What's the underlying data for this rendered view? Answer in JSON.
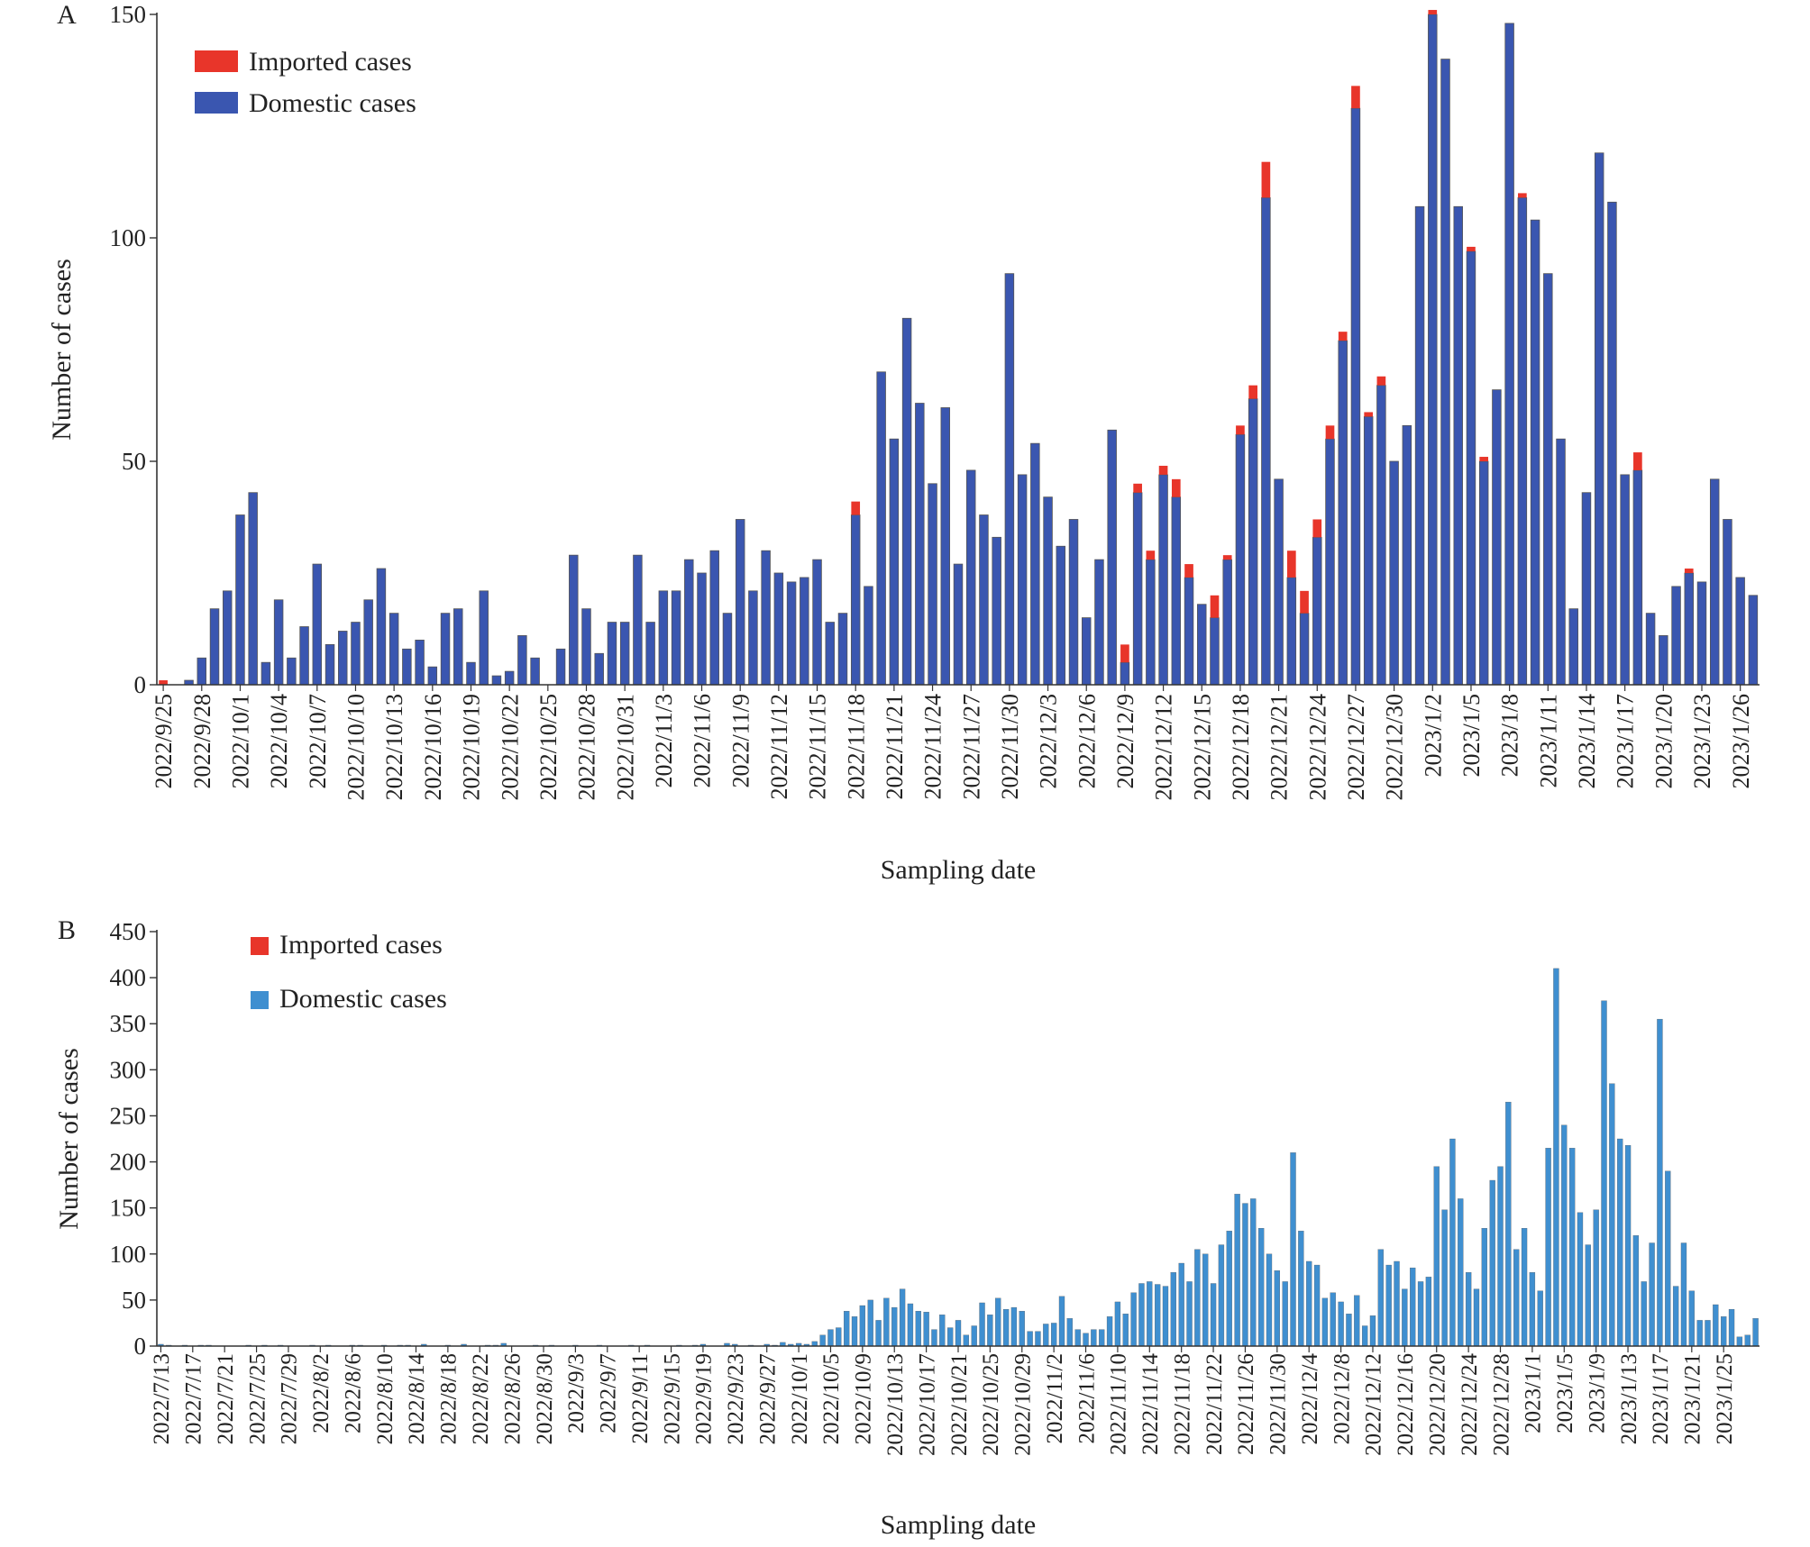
{
  "colors": {
    "imported": "#e8352a",
    "domestic": "#3a56b0",
    "domestic_b": "#3f8fd0",
    "axis": "#333333",
    "bar_outline": "#555555"
  },
  "chart_data": [
    {
      "panel_label": "A",
      "type": "bar",
      "stacked": true,
      "xlabel": "Sampling date",
      "ylabel": "Number of cases",
      "ylim": [
        0,
        150
      ],
      "yticks": [
        0,
        50,
        100,
        150
      ],
      "legend": {
        "position": "top-left",
        "entries": [
          "Imported cases",
          "Domestic cases"
        ]
      },
      "tick_labels": [
        "2022/9/25",
        "2022/9/28",
        "2022/10/1",
        "2022/10/4",
        "2022/10/7",
        "2022/10/10",
        "2022/10/13",
        "2022/10/16",
        "2022/10/19",
        "2022/10/22",
        "2022/10/25",
        "2022/10/28",
        "2022/10/31",
        "2022/11/3",
        "2022/11/6",
        "2022/11/9",
        "2022/11/12",
        "2022/11/15",
        "2022/11/18",
        "2022/11/21",
        "2022/11/24",
        "2022/11/27",
        "2022/11/30",
        "2022/12/3",
        "2022/12/6",
        "2022/12/9",
        "2022/12/12",
        "2022/12/15",
        "2022/12/18",
        "2022/12/21",
        "2022/12/24",
        "2022/12/27",
        "2022/12/30",
        "2023/1/2",
        "2023/1/5",
        "2023/1/8",
        "2023/1/11",
        "2023/1/14",
        "2023/1/17",
        "2023/1/20",
        "2023/1/23",
        "2023/1/26"
      ],
      "series": [
        {
          "name": "Domestic cases",
          "values": [
            0,
            0,
            1,
            6,
            17,
            21,
            38,
            43,
            5,
            19,
            6,
            13,
            27,
            9,
            12,
            14,
            19,
            26,
            16,
            8,
            10,
            4,
            16,
            17,
            5,
            21,
            2,
            3,
            11,
            6,
            0,
            8,
            29,
            17,
            7,
            14,
            14,
            29,
            14,
            21,
            21,
            28,
            25,
            30,
            16,
            37,
            21,
            30,
            25,
            23,
            24,
            28,
            14,
            16,
            38,
            22,
            70,
            55,
            82,
            63,
            45,
            62,
            27,
            48,
            38,
            33,
            92,
            47,
            54,
            42,
            31,
            37,
            15,
            28,
            57,
            5,
            43,
            28,
            47,
            42,
            24,
            18,
            15,
            28,
            56,
            64,
            109,
            46,
            24,
            16,
            33,
            55,
            77,
            129,
            60,
            67,
            50,
            58,
            107,
            150,
            140,
            107,
            97,
            50,
            66,
            148,
            109,
            104,
            92,
            55,
            17,
            43,
            119,
            108,
            47,
            48,
            16,
            11,
            22,
            25,
            23,
            46,
            37,
            24,
            20
          ]
        },
        {
          "name": "Imported cases",
          "values": [
            1,
            0,
            0,
            0,
            0,
            0,
            0,
            0,
            0,
            0,
            0,
            0,
            0,
            0,
            0,
            0,
            0,
            0,
            0,
            0,
            0,
            0,
            0,
            0,
            0,
            0,
            0,
            0,
            0,
            0,
            0,
            0,
            0,
            0,
            0,
            0,
            0,
            0,
            0,
            0,
            0,
            0,
            0,
            0,
            0,
            0,
            0,
            0,
            0,
            0,
            0,
            0,
            0,
            0,
            3,
            0,
            0,
            0,
            0,
            0,
            0,
            0,
            0,
            0,
            0,
            0,
            0,
            0,
            0,
            0,
            0,
            0,
            0,
            0,
            0,
            4,
            2,
            2,
            2,
            4,
            3,
            0,
            5,
            1,
            2,
            3,
            8,
            0,
            6,
            5,
            4,
            3,
            2,
            5,
            1,
            2,
            0,
            0,
            0,
            1,
            0,
            0,
            1,
            1,
            0,
            0,
            1,
            0,
            0,
            0,
            0,
            0,
            0,
            0,
            0,
            4,
            0,
            0,
            0,
            1,
            0,
            0,
            0,
            0,
            0
          ]
        }
      ]
    },
    {
      "panel_label": "B",
      "type": "bar",
      "stacked": true,
      "xlabel": "Sampling date",
      "ylabel": "Number of cases",
      "ylim": [
        0,
        450
      ],
      "yticks": [
        0,
        50,
        100,
        150,
        200,
        250,
        300,
        350,
        400,
        450
      ],
      "legend": {
        "position": "top-left",
        "entries": [
          "Imported cases",
          "Domestic cases"
        ]
      },
      "tick_labels": [
        "2022/7/13",
        "2022/7/17",
        "2022/7/21",
        "2022/7/25",
        "2022/7/29",
        "2022/8/2",
        "2022/8/6",
        "2022/8/10",
        "2022/8/14",
        "2022/8/18",
        "2022/8/22",
        "2022/8/26",
        "2022/8/30",
        "2022/9/3",
        "2022/9/7",
        "2022/9/11",
        "2022/9/15",
        "2022/9/19",
        "2022/9/23",
        "2022/9/27",
        "2022/10/1",
        "2022/10/5",
        "2022/10/9",
        "2022/10/13",
        "2022/10/17",
        "2022/10/21",
        "2022/10/25",
        "2022/10/29",
        "2022/11/2",
        "2022/11/6",
        "2022/11/10",
        "2022/11/14",
        "2022/11/18",
        "2022/11/22",
        "2022/11/26",
        "2022/11/30",
        "2022/12/4",
        "2022/12/8",
        "2022/12/12",
        "2022/12/16",
        "2022/12/20",
        "2022/12/24",
        "2022/12/28",
        "2023/1/1",
        "2023/1/5",
        "2023/1/9",
        "2023/1/13",
        "2023/1/17",
        "2023/1/21",
        "2023/1/25"
      ],
      "series": [
        {
          "name": "Domestic cases",
          "values": [
            2,
            1,
            0,
            1,
            0,
            1,
            1,
            0,
            0,
            0,
            0,
            1,
            0,
            1,
            0,
            1,
            0,
            0,
            0,
            1,
            0,
            1,
            0,
            0,
            1,
            1,
            0,
            0,
            1,
            0,
            1,
            1,
            0,
            2,
            0,
            0,
            1,
            0,
            2,
            0,
            0,
            1,
            1,
            3,
            0,
            0,
            0,
            1,
            0,
            1,
            0,
            0,
            1,
            0,
            0,
            1,
            0,
            0,
            0,
            1,
            0,
            1,
            0,
            0,
            0,
            1,
            0,
            1,
            2,
            0,
            0,
            3,
            2,
            0,
            1,
            0,
            2,
            1,
            4,
            2,
            3,
            2,
            5,
            12,
            18,
            20,
            38,
            32,
            44,
            50,
            28,
            52,
            42,
            62,
            46,
            38,
            37,
            18,
            34,
            20,
            28,
            12,
            22,
            47,
            34,
            52,
            40,
            42,
            38,
            16,
            16,
            24,
            25,
            54,
            30,
            18,
            14,
            18,
            18,
            32,
            48,
            35,
            58,
            68,
            70,
            67,
            65,
            80,
            90,
            70,
            105,
            100,
            68,
            110,
            125,
            165,
            155,
            160,
            128,
            100,
            82,
            70,
            210,
            125,
            92,
            88,
            52,
            58,
            48,
            35,
            55,
            22,
            33,
            105,
            88,
            92,
            62,
            85,
            70,
            75,
            195,
            148,
            225,
            160,
            80,
            62,
            128,
            180,
            195,
            265,
            105,
            128,
            80,
            60,
            215,
            410,
            240,
            215,
            145,
            110,
            148,
            375,
            285,
            225,
            218,
            120,
            70,
            112,
            355,
            190,
            65,
            112,
            60,
            28,
            28,
            45,
            32,
            40,
            10,
            12,
            30
          ]
        },
        {
          "name": "Imported cases",
          "values": [
            0,
            0,
            0,
            0,
            0,
            0,
            0,
            0,
            0,
            0,
            0,
            0,
            0,
            0,
            0,
            0,
            0,
            0,
            0,
            0,
            0,
            0,
            0,
            0,
            0,
            0,
            0,
            0,
            0,
            0,
            0,
            0,
            0,
            0,
            0,
            0,
            0,
            0,
            0,
            0,
            0,
            0,
            0,
            0,
            0,
            0,
            0,
            0,
            0,
            0,
            0,
            0,
            0,
            0,
            0,
            0,
            0,
            0,
            0,
            0,
            0,
            0,
            0,
            0,
            0,
            0,
            0,
            0,
            0,
            0,
            0,
            0,
            0,
            0,
            0,
            0,
            0,
            0,
            0,
            0,
            0,
            0,
            0,
            0,
            0,
            0,
            0,
            0,
            0,
            0,
            0,
            0,
            0,
            0,
            0,
            0,
            0,
            0,
            0,
            0,
            0,
            0,
            0,
            0,
            0,
            0,
            0,
            0,
            0,
            0,
            0,
            0,
            0,
            0,
            0,
            0,
            0,
            0,
            0,
            0,
            0,
            0,
            0,
            0,
            0,
            0,
            0,
            0,
            0,
            0,
            0,
            0,
            0,
            0,
            0,
            0,
            0,
            0,
            0,
            0,
            0,
            0,
            0,
            0,
            0,
            0,
            0,
            0,
            0,
            0,
            0,
            0,
            0,
            0,
            0,
            0,
            0,
            0,
            0,
            0,
            0,
            0,
            0,
            0,
            0,
            0,
            0,
            0,
            0,
            0,
            0,
            0,
            0,
            0,
            0,
            0,
            0,
            0,
            0,
            0,
            0,
            0,
            0,
            0,
            0,
            0,
            0,
            0,
            0,
            0,
            0,
            0,
            0,
            0,
            0,
            0,
            0,
            0,
            0,
            0,
            0,
            0,
            0,
            0,
            0,
            0,
            0
          ]
        }
      ]
    }
  ]
}
